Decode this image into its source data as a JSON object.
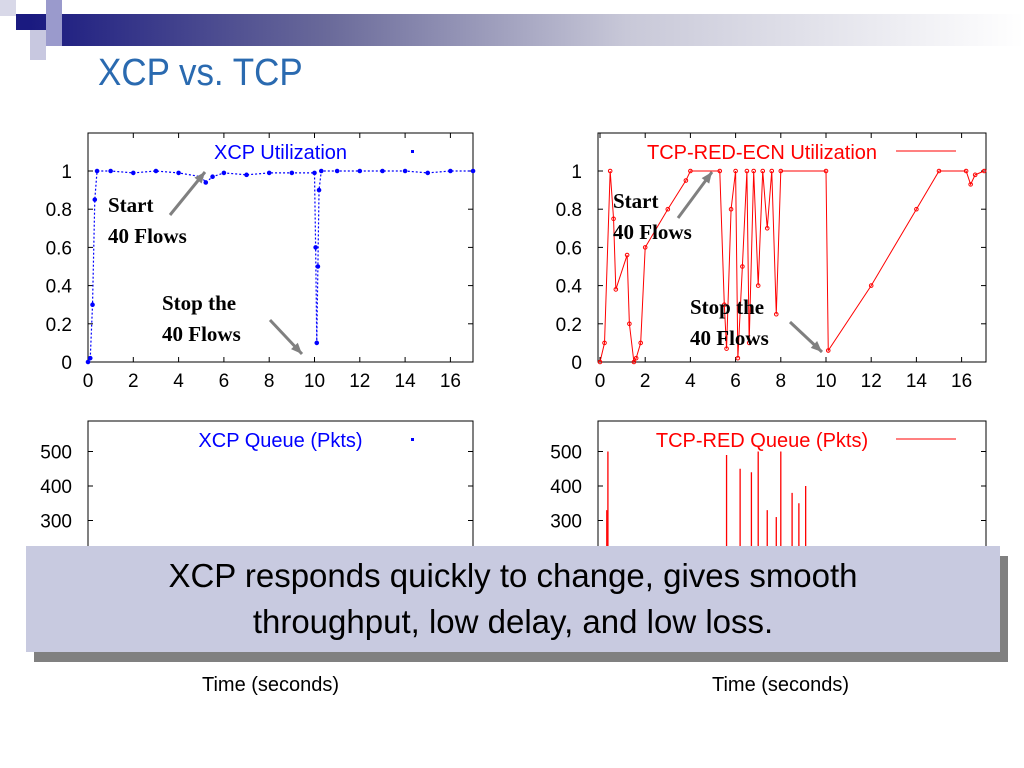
{
  "slide": {
    "title": "XCP vs. TCP",
    "callout": "XCP responds quickly to change, gives smooth throughput, low delay, and low loss.",
    "colors": {
      "title": "#2a6ab0",
      "xcp": "#0000ff",
      "tcp": "#ff0000",
      "callout_bg": "#c8cae0"
    }
  },
  "chart_data": [
    {
      "type": "scatter",
      "title": "XCP Utilization",
      "legend": "XCP Utilization",
      "legend_placement": "top",
      "xlim": [
        0,
        17
      ],
      "ylim": [
        0,
        1.1
      ],
      "xticks": [
        "0",
        "2",
        "4",
        "6",
        "8",
        "10",
        "12",
        "14",
        "16"
      ],
      "yticks": [
        "0",
        "0.2",
        "0.4",
        "0.6",
        "0.8",
        "1"
      ],
      "x": [
        0,
        0.1,
        0.2,
        0.3,
        0.4,
        1,
        2,
        3,
        4,
        5,
        5.2,
        5.5,
        6,
        7,
        8,
        9,
        10,
        10.05,
        10.1,
        10.15,
        10.2,
        10.3,
        11,
        12,
        13,
        14,
        15,
        16,
        17
      ],
      "y": [
        0,
        0.02,
        0.3,
        0.85,
        1,
        1,
        0.99,
        1,
        0.99,
        0.97,
        0.94,
        0.97,
        0.99,
        0.98,
        0.99,
        0.99,
        0.99,
        0.6,
        0.1,
        0.5,
        0.9,
        1,
        1,
        1,
        1,
        1,
        0.99,
        1,
        1
      ],
      "annotations": [
        "Start 40 Flows",
        "Stop the 40 Flows"
      ]
    },
    {
      "type": "line",
      "title": "TCP-RED-ECN Utilization",
      "legend": "TCP-RED-ECN Utilization",
      "legend_placement": "top",
      "xlim": [
        0,
        17
      ],
      "ylim": [
        0,
        1.1
      ],
      "xticks": [
        "0",
        "2",
        "4",
        "6",
        "8",
        "10",
        "12",
        "14",
        "16"
      ],
      "yticks": [
        "0",
        "0.2",
        "0.4",
        "0.6",
        "0.8",
        "1"
      ],
      "x": [
        0,
        0.2,
        0.45,
        0.6,
        0.7,
        1.2,
        1.3,
        1.5,
        1.6,
        1.8,
        2,
        3,
        3.8,
        4,
        5.3,
        5.5,
        5.6,
        5.8,
        6,
        6.1,
        6.3,
        6.5,
        6.6,
        6.8,
        7,
        7.2,
        7.4,
        7.6,
        7.8,
        8,
        10,
        10.1,
        12,
        14,
        15,
        16.2,
        16.4,
        16.6,
        17
      ],
      "y": [
        0,
        0.1,
        1,
        0.75,
        0.38,
        0.56,
        0.2,
        0,
        0.02,
        0.1,
        0.6,
        0.8,
        0.95,
        1,
        1,
        0.3,
        0.07,
        0.8,
        1,
        0.02,
        0.5,
        1,
        0.1,
        1,
        0.4,
        1,
        0.7,
        1,
        0.25,
        1,
        1,
        0.06,
        0.4,
        0.8,
        1,
        1,
        0.93,
        0.98,
        1
      ],
      "annotations": [
        "Start 40 Flows",
        "Stop the 40 Flows"
      ]
    },
    {
      "type": "scatter",
      "title": "XCP Queue (Pkts)",
      "legend": "XCP Queue (Pkts)",
      "legend_placement": "top",
      "xlabel": "Time (seconds)",
      "xlim": [
        0,
        17
      ],
      "ylim": [
        0,
        590
      ],
      "yticks": [
        "300",
        "400",
        "500"
      ],
      "x": [],
      "y": []
    },
    {
      "type": "line",
      "title": "TCP-RED Queue (Pkts)",
      "legend": "TCP-RED Queue (Pkts)",
      "legend_placement": "top-right",
      "xlabel": "Time (seconds)",
      "xlim": [
        0,
        17
      ],
      "ylim": [
        0,
        590
      ],
      "yticks": [
        "300",
        "400",
        "500"
      ],
      "x": [
        0.3,
        0.35,
        5.6,
        6.2,
        6.7,
        7.0,
        7.4,
        7.8,
        8.0,
        8.5,
        8.8,
        9.1
      ],
      "y": [
        330,
        500,
        490,
        450,
        440,
        500,
        330,
        310,
        500,
        380,
        350,
        400
      ]
    }
  ]
}
